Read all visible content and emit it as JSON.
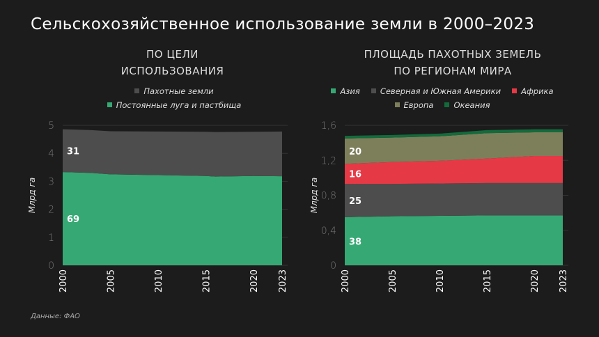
{
  "title": "Сельскохозяйственное использование земли в 2000–2023",
  "source": "Данные: ФАО",
  "chart_data": [
    {
      "type": "area",
      "stacked": true,
      "title_lines": [
        "ПО ЦЕЛИ",
        "ИСПОЛЬЗОВАНИЯ"
      ],
      "ylabel": "Млрд га",
      "ylim": [
        0,
        5
      ],
      "yticks": [
        "0",
        "1",
        "2",
        "3",
        "4",
        "5"
      ],
      "xticks": [
        "2000",
        "2005",
        "2010",
        "2015",
        "2020",
        "2023"
      ],
      "legend_position": "top",
      "x": [
        2000,
        2003,
        2005,
        2010,
        2015,
        2016,
        2020,
        2023
      ],
      "series": [
        {
          "name": "Постоянные луга и пастбища",
          "color": "#36a874",
          "values": [
            3.33,
            3.3,
            3.25,
            3.22,
            3.19,
            3.17,
            3.19,
            3.18
          ],
          "label": "69"
        },
        {
          "name": "Пахотные земли",
          "color": "#4d4d4d",
          "values": [
            1.53,
            1.53,
            1.54,
            1.56,
            1.58,
            1.59,
            1.58,
            1.6
          ],
          "label": "31"
        }
      ],
      "legend_order": [
        1,
        0
      ]
    },
    {
      "type": "area",
      "stacked": true,
      "title_lines": [
        "ПЛОЩАДЬ ПАХОТНЫХ ЗЕМЕЛЬ",
        "ПО РЕГИОНАМ МИРА"
      ],
      "ylabel": "Млрд га",
      "ylim": [
        0,
        1.6
      ],
      "yticks": [
        "0",
        "0,4",
        "0,8",
        "1,2",
        "1,6"
      ],
      "xticks": [
        "2000",
        "2005",
        "2010",
        "2015",
        "2020",
        "2023"
      ],
      "legend_position": "top",
      "x": [
        2000,
        2005,
        2010,
        2015,
        2020,
        2023
      ],
      "series": [
        {
          "name": "Азия",
          "color": "#36a874",
          "values": [
            0.55,
            0.56,
            0.565,
            0.57,
            0.57,
            0.57
          ],
          "label": "38"
        },
        {
          "name": "Северная и Южная Америки",
          "color": "#4d4d4d",
          "values": [
            0.38,
            0.37,
            0.37,
            0.37,
            0.37,
            0.37
          ],
          "label": "25"
        },
        {
          "name": "Африка",
          "color": "#e63946",
          "values": [
            0.23,
            0.25,
            0.26,
            0.28,
            0.31,
            0.31
          ],
          "label": "16"
        },
        {
          "name": "Европа",
          "color": "#7d7f5b",
          "values": [
            0.29,
            0.28,
            0.28,
            0.29,
            0.27,
            0.27
          ],
          "label": "20"
        },
        {
          "name": "Океания",
          "color": "#136b3c",
          "values": [
            0.03,
            0.03,
            0.03,
            0.035,
            0.035,
            0.035
          ],
          "label": ""
        }
      ],
      "legend_order": [
        0,
        1,
        2,
        3,
        4
      ]
    }
  ]
}
